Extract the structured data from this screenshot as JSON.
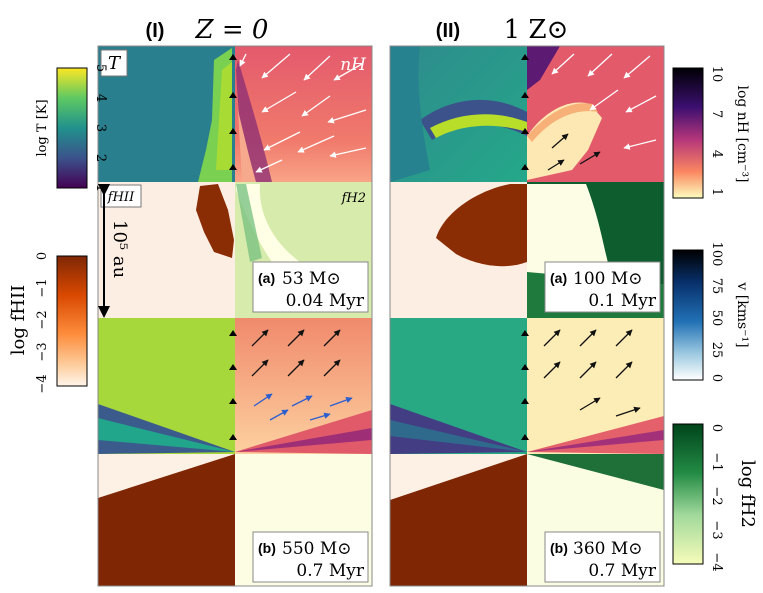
{
  "figure": {
    "columns": [
      {
        "id": "I",
        "tag": "(I)",
        "title": "Z = 0"
      },
      {
        "id": "II",
        "tag": "(II)",
        "title": "1 Z⊙"
      }
    ],
    "quadrant_labels": {
      "temperature": "T",
      "density": "nH",
      "hii": "fHII",
      "h2": "fH2"
    },
    "scale_bar": "10⁵ au",
    "snapshots": [
      {
        "col": "I",
        "tag": "(a)",
        "mass": "53 M⊙",
        "time": "0.04 Myr"
      },
      {
        "col": "I",
        "tag": "(b)",
        "mass": "550 M⊙",
        "time": "0.7 Myr"
      },
      {
        "col": "II",
        "tag": "(a)",
        "mass": "100 M⊙",
        "time": "0.1 Myr"
      },
      {
        "col": "II",
        "tag": "(b)",
        "mass": "360 M⊙",
        "time": "0.7 Myr"
      }
    ]
  },
  "colorbars": {
    "temperature": {
      "label": "log T [K]",
      "ticks": [
        "5",
        "4",
        "3",
        "2",
        "1"
      ],
      "colormap": "viridis"
    },
    "hii": {
      "label": "log fHII",
      "ticks": [
        "0",
        "−1",
        "−2",
        "−3",
        "−4"
      ],
      "colormap": "oranges"
    },
    "density": {
      "label": "log nH [cm⁻³]",
      "ticks": [
        "10",
        "7",
        "4",
        "1"
      ],
      "colormap": "magma"
    },
    "velocity": {
      "label": "v [kms⁻¹]",
      "ticks": [
        "100",
        "75",
        "50",
        "25",
        "0"
      ],
      "colormap": "blues"
    },
    "h2": {
      "label": "log fH2",
      "ticks": [
        "0",
        "−1",
        "−2",
        "−3",
        "−4"
      ],
      "colormap": "greens"
    }
  },
  "colors": {
    "temp_blue": "#31688e",
    "temp_green": "#6ece58",
    "temp_yellow": "#fde725",
    "hii_dark": "#7f2704",
    "hii_light": "#fff5eb",
    "dens_pink": "#e45a6d",
    "dens_light": "#fdd9a8",
    "dens_dark": "#1a0c2f",
    "h2_dark": "#00441b",
    "h2_light": "#f7fcb9"
  }
}
